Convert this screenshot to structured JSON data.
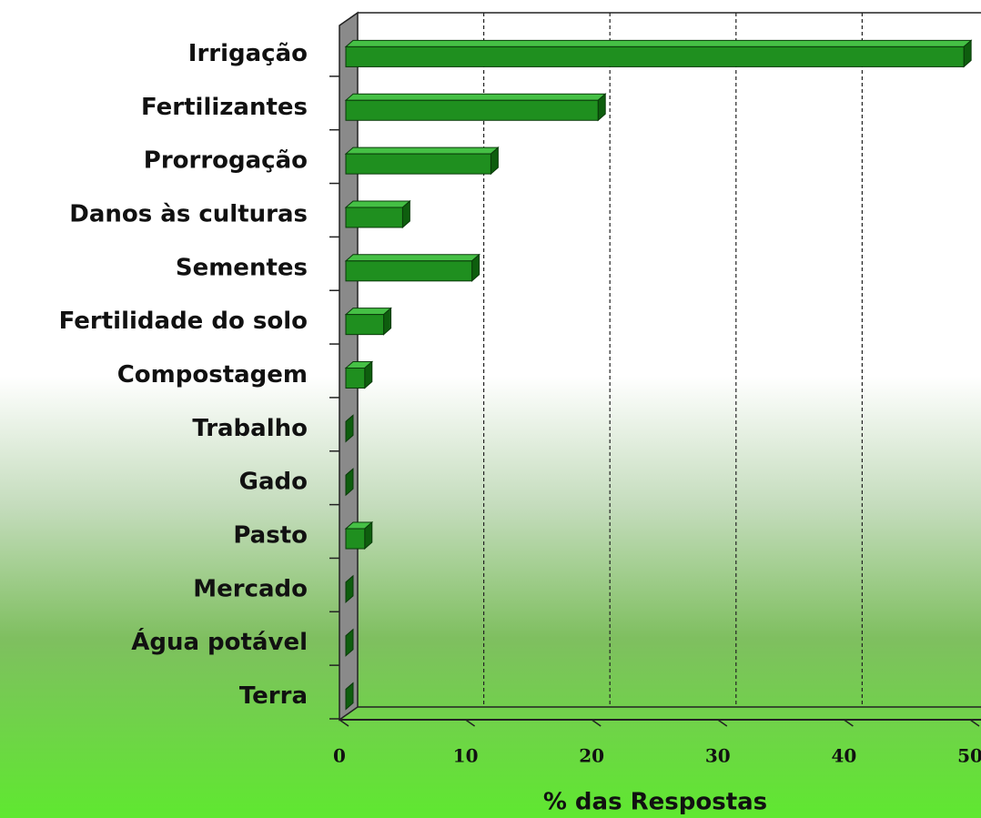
{
  "chart_data": {
    "type": "bar",
    "orientation": "horizontal",
    "categories": [
      "Irrigação",
      "Fertilizantes",
      "Prorrogação",
      "Danos às culturas",
      "Sementes",
      "Fertilidade do solo",
      "Compostagem",
      "Trabalho",
      "Gado",
      "Pasto",
      "Mercado",
      "Água potável",
      "Terra"
    ],
    "values": [
      49,
      20,
      11.5,
      4.5,
      10,
      3,
      1.5,
      0,
      0,
      1.5,
      0,
      0,
      0
    ],
    "color": "#1f8f1f",
    "xlabel": "% das Respostas",
    "xlim": [
      0,
      50
    ],
    "xticks": [
      0,
      10,
      20,
      30,
      40,
      50
    ],
    "grid": true
  }
}
